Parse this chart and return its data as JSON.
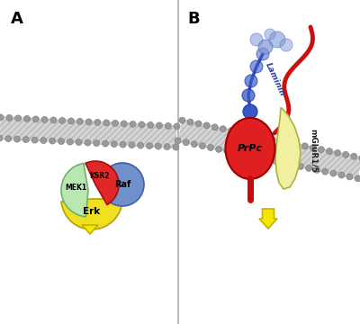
{
  "bg_color": "#ffffff",
  "divider_color": "#bbbbbb",
  "label_A": "A",
  "label_B": "B",
  "laminin_label": "Laminin",
  "prpc_label": "PrPc",
  "mglur_label": "mGluR1/5",
  "mek1_label": "MEK1",
  "ksr2_label": "KSR2",
  "raf_label": "Raf",
  "erk_label": "Erk",
  "membrane_fill": "#d8d8d8",
  "membrane_hatch": "#aaaaaa",
  "membrane_dot": "#909090",
  "arrow_fc": "#f5e800",
  "arrow_ec": "#c8b000"
}
